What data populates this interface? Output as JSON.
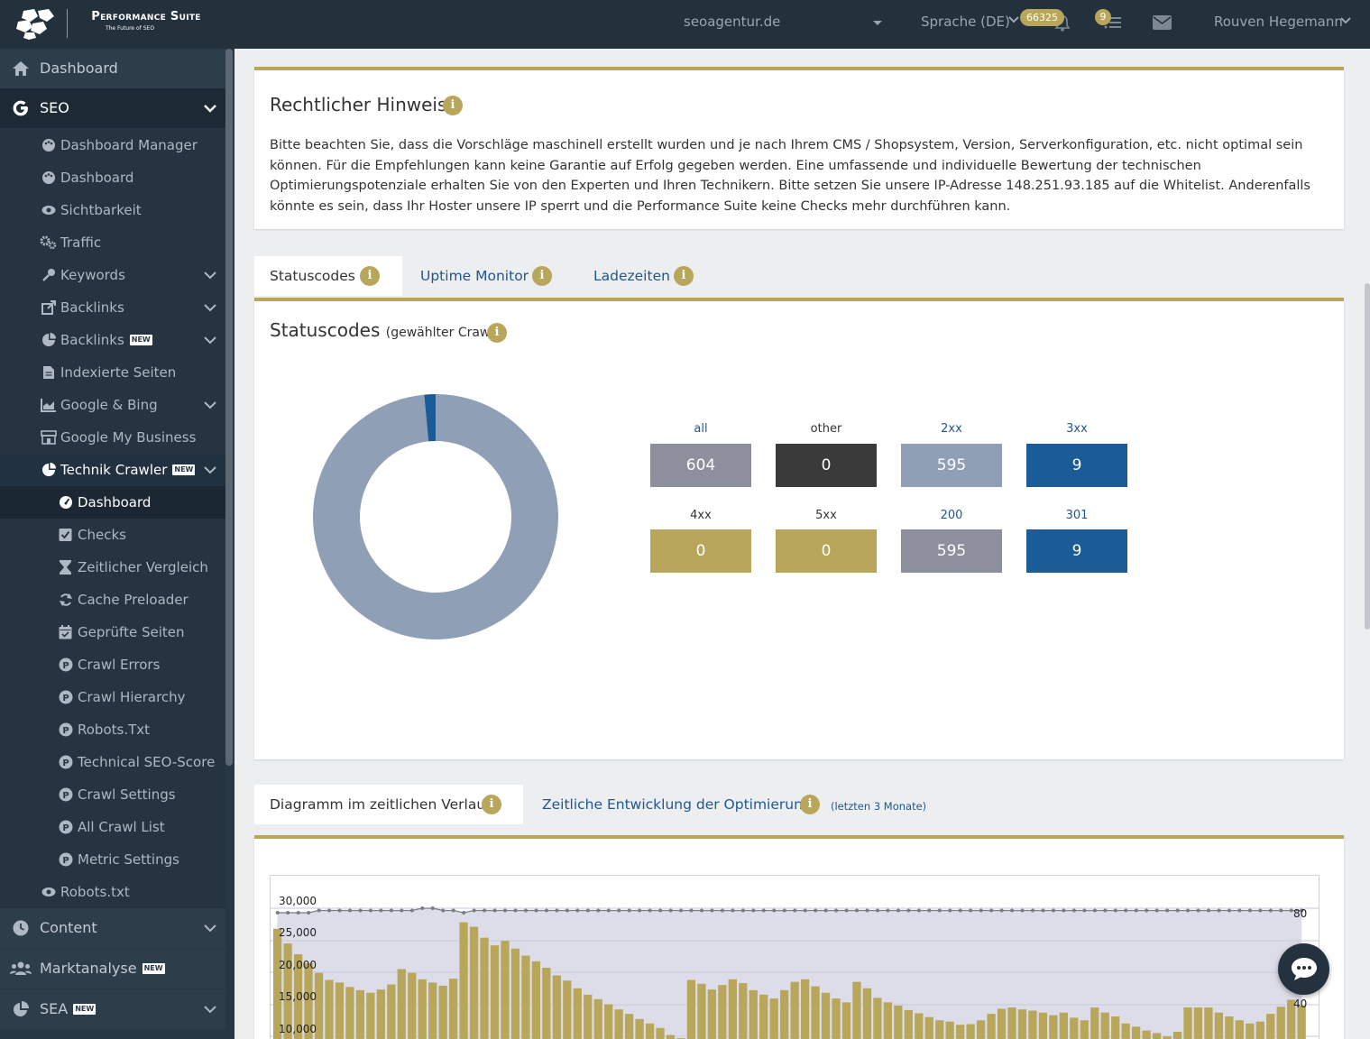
{
  "header": {
    "logo_title": "Performance Suite",
    "logo_subtitle": "The Future of SEO",
    "domain": "seoagentur.de",
    "language": "Sprache (DE)",
    "credits_badge": "66325",
    "tasks_badge": "9",
    "user_name": "Rouven Hegemann"
  },
  "sidebar": {
    "dashboard": "Dashboard",
    "seo": "SEO",
    "seo_items": [
      {
        "label": "Dashboard Manager",
        "icon": "palette-icon"
      },
      {
        "label": "Dashboard",
        "icon": "palette-icon"
      },
      {
        "label": "Sichtbarkeit",
        "icon": "eye-icon"
      },
      {
        "label": "Traffic",
        "icon": "cogs-icon"
      },
      {
        "label": "Keywords",
        "icon": "key-icon",
        "expandable": true
      },
      {
        "label": "Backlinks",
        "icon": "external-link-icon",
        "expandable": true
      },
      {
        "label": "Backlinks",
        "icon": "pie-chart-icon",
        "expandable": true,
        "new": true
      },
      {
        "label": "Indexierte Seiten",
        "icon": "file-icon"
      },
      {
        "label": "Google & Bing",
        "icon": "area-chart-icon",
        "expandable": true
      },
      {
        "label": "Google My Business",
        "icon": "store-icon"
      },
      {
        "label": "Technik Crawler",
        "icon": "pie-chart-icon",
        "expandable": true,
        "new": true
      }
    ],
    "crawler_items": [
      {
        "label": "Dashboard",
        "icon": "gauge-icon"
      },
      {
        "label": "Checks",
        "icon": "checkbox-icon"
      },
      {
        "label": "Zeitlicher Vergleich",
        "icon": "hourglass-icon"
      },
      {
        "label": "Cache Preloader",
        "icon": "refresh-icon"
      },
      {
        "label": "Geprüfte Seiten",
        "icon": "calendar-check-icon"
      },
      {
        "label": "Crawl Errors",
        "icon": "p-circle-icon"
      },
      {
        "label": "Crawl Hierarchy",
        "icon": "p-circle-icon"
      },
      {
        "label": "Robots.Txt",
        "icon": "p-circle-icon"
      },
      {
        "label": "Technical SEO-Score",
        "icon": "p-circle-icon"
      },
      {
        "label": "Crawl Settings",
        "icon": "p-circle-icon"
      },
      {
        "label": "All Crawl List",
        "icon": "p-circle-icon"
      },
      {
        "label": "Metric Settings",
        "icon": "p-circle-icon"
      }
    ],
    "robots": "Robots.txt",
    "content": "Content",
    "marktanalyse": "Marktanalyse",
    "sea": "SEA",
    "new_tag": "NEW"
  },
  "notice": {
    "title": "Rechtlicher Hinweis",
    "info_glyph": "i",
    "text": "Bitte beachten Sie, dass die Vorschläge maschinell erstellt wurden und je nach Ihrem CMS / Shopsystem, Version, Serverkonfiguration, etc. nicht optimal sein können. Für die Empfehlungen kann keine Garantie auf Erfolg gegeben werden. Eine umfassende und individuelle Bewertung der technischen Optimierungspotenziale erhalten Sie von den Experten und Ihren Technikern. Bitte setzen Sie unsere IP-Adresse 148.251.93.185 auf die Whitelist. Anderenfalls könnte es sein, dass Ihr Hoster unsere IP sperrt und die Performance Suite keine Checks mehr durchführen kann."
  },
  "status_tabs": [
    "Statuscodes",
    "Uptime Monitor",
    "Ladezeiten"
  ],
  "statuscodes": {
    "title": "Statuscodes",
    "subtitle": "(gewählter Crawl)",
    "tiles": [
      {
        "label": "all",
        "value": "604",
        "bg": "#8d8f9c",
        "label_color": "#21578f"
      },
      {
        "label": "other",
        "value": "0",
        "bg": "#3a3a3a",
        "label_color": "#333333"
      },
      {
        "label": "2xx",
        "value": "595",
        "bg": "#8fa0b6",
        "label_color": "#21578f"
      },
      {
        "label": "3xx",
        "value": "9",
        "bg": "#1b5c98",
        "label_color": "#21578f"
      },
      {
        "label": "4xx",
        "value": "0",
        "bg": "#b8a65b",
        "label_color": "#333333"
      },
      {
        "label": "5xx",
        "value": "0",
        "bg": "#b8a65b",
        "label_color": "#333333"
      },
      {
        "label": "200",
        "value": "595",
        "bg": "#8d8f9c",
        "label_color": "#21578f"
      },
      {
        "label": "301",
        "value": "9",
        "bg": "#1b5c98",
        "label_color": "#21578f"
      }
    ],
    "donut": [
      {
        "name": "2xx",
        "value": 595,
        "color": "#8fa0b6"
      },
      {
        "name": "3xx",
        "value": 9,
        "color": "#1b5c98"
      }
    ]
  },
  "chart_tabs": {
    "active": "Diagramm im zeitlichen Verlauf",
    "second": "Zeitliche Entwicklung der Optimierung",
    "second_note": "(letzten 3 Monate)"
  },
  "chart_data": {
    "type": "bar",
    "left_ticks": [
      "30,000",
      "25,000",
      "20,000",
      "15,000",
      "10,000"
    ],
    "right_ticks": [
      "80",
      "40"
    ],
    "ylim_left": [
      8000,
      32500
    ],
    "ylim_right": [
      0,
      90
    ],
    "bars": {
      "color": "#b8a65b",
      "values": [
        26800,
        24500,
        22800,
        21400,
        19900,
        18800,
        18400,
        17700,
        17200,
        16800,
        17300,
        18100,
        20500,
        19900,
        18900,
        18400,
        17900,
        19000,
        27800,
        27100,
        25400,
        24200,
        24900,
        23700,
        22600,
        21700,
        20700,
        19500,
        18700,
        17500,
        16500,
        15800,
        15000,
        14200,
        13500,
        12700,
        12000,
        11300,
        10200,
        9700,
        18800,
        18200,
        17300,
        18000,
        18900,
        18300,
        17200,
        16500,
        15900,
        17200,
        18500,
        18900,
        17800,
        16800,
        15900,
        15300,
        18500,
        17500,
        16000,
        15300,
        14800,
        14100,
        13600,
        13000,
        12500,
        12300,
        11800,
        11900,
        12500,
        13500,
        14300,
        14500,
        14200,
        14000,
        13700,
        13300,
        13700,
        12900,
        12500,
        14500,
        13700,
        13100,
        12000,
        11500,
        10900,
        10500,
        10000,
        10700,
        14500,
        14500,
        14500,
        13700,
        13100,
        12500,
        12000,
        12300,
        13500,
        14600,
        15700,
        14800
      ]
    },
    "line": {
      "color": "#7a7d86",
      "values": [
        80,
        80,
        80,
        80,
        81,
        81,
        81,
        81,
        81,
        81,
        81,
        81,
        81,
        81,
        82,
        82,
        81,
        81,
        80,
        81,
        81,
        81,
        81,
        81,
        81,
        81,
        81,
        81,
        81,
        81,
        81,
        81,
        81,
        81,
        81,
        81,
        81,
        81,
        81,
        81,
        81,
        81,
        81,
        81,
        81,
        81,
        81,
        81,
        81,
        81,
        81,
        81,
        81,
        81,
        81,
        81,
        81,
        81,
        81,
        81,
        81,
        81,
        81,
        81,
        81,
        81,
        81,
        81,
        81,
        81,
        81,
        81,
        81,
        81,
        81,
        81,
        81,
        81,
        81,
        81,
        81,
        81,
        81,
        81,
        81,
        81,
        81,
        81,
        81,
        81,
        81,
        81,
        81,
        81,
        81,
        81,
        81,
        81,
        81,
        81
      ]
    }
  }
}
